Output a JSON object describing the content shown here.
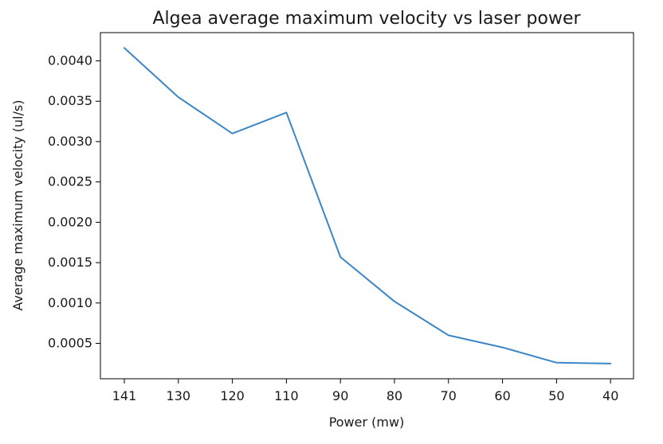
{
  "chart_data": {
    "type": "line",
    "title": "Algea average maximum velocity vs laser power",
    "xlabel": "Power (mw)",
    "ylabel": "Average maximum velocity (ul/s)",
    "categories": [
      "141",
      "130",
      "120",
      "110",
      "90",
      "80",
      "70",
      "60",
      "50",
      "40"
    ],
    "series": [
      {
        "values": [
          0.00416,
          0.00355,
          0.0031,
          0.00336,
          0.00157,
          0.00102,
          0.0006,
          0.00045,
          0.00026,
          0.00025
        ],
        "color": "#3b86c6"
      }
    ],
    "ylim": [
      0.0,
      0.0044
    ],
    "yticks": [
      "0.0005",
      "0.0010",
      "0.0015",
      "0.0020",
      "0.0025",
      "0.0030",
      "0.0035",
      "0.0040"
    ],
    "grid": false,
    "legend": "none"
  }
}
